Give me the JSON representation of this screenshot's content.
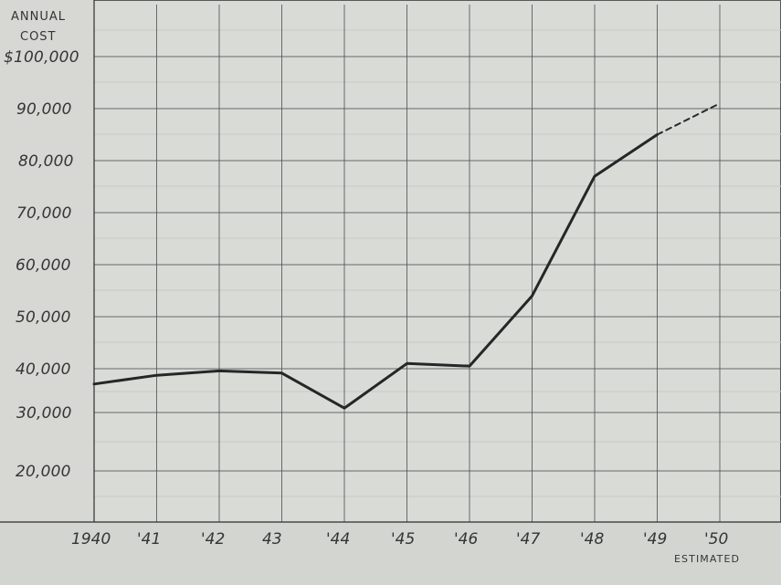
{
  "chart_data": {
    "type": "line",
    "title_lines": [
      "ANNUAL",
      "COST"
    ],
    "y_ticks": [
      "$100,000",
      "90,000",
      "80,000",
      "70,000",
      "60,000",
      "50,000",
      "40,000",
      "30,000",
      "20,000"
    ],
    "x_ticks": [
      "1940",
      "'41",
      "'42",
      "43",
      "'44",
      "'45",
      "'46",
      "'47",
      "'48",
      "'49",
      "'50"
    ],
    "estimated_label": "ESTIMATED",
    "x": [
      1940,
      1941,
      1942,
      1943,
      1944,
      1945,
      1946,
      1947,
      1948,
      1949,
      1950
    ],
    "series": [
      {
        "values": [
          36500,
          38500,
          39500,
          39000,
          31000,
          41000,
          40500,
          54000,
          77000,
          85000,
          null
        ]
      },
      {
        "values": [
          null,
          null,
          null,
          null,
          null,
          null,
          null,
          null,
          null,
          85000,
          91000
        ]
      }
    ],
    "grid": true
  }
}
